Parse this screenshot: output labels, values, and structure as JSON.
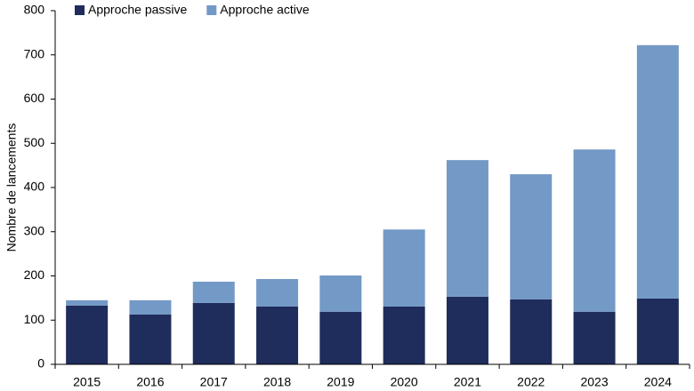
{
  "chart_data": {
    "type": "bar",
    "stacked": true,
    "y_label": "Nombre de lancements",
    "categories": [
      "2015",
      "2016",
      "2017",
      "2018",
      "2019",
      "2020",
      "2021",
      "2022",
      "2023",
      "2024"
    ],
    "series": [
      {
        "name": "Approche passive",
        "color": "#1f2d5c",
        "values": [
          133,
          113,
          139,
          131,
          119,
          131,
          153,
          147,
          119,
          149
        ]
      },
      {
        "name": "Approche active",
        "color": "#7399c6",
        "values": [
          12,
          32,
          48,
          62,
          82,
          174,
          309,
          283,
          367,
          573
        ]
      }
    ],
    "ylim": [
      0,
      800
    ],
    "yticks": [
      0,
      100,
      200,
      300,
      400,
      500,
      600,
      700,
      800
    ]
  }
}
